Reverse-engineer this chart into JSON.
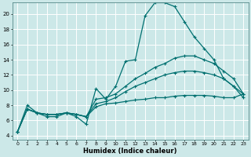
{
  "xlabel": "Humidex (Indice chaleur)",
  "background_color": "#cce8e8",
  "grid_color": "#ffffff",
  "line_color": "#007070",
  "xlim": [
    -0.5,
    23.5
  ],
  "ylim": [
    3.5,
    21.5
  ],
  "yticks": [
    4,
    6,
    8,
    10,
    12,
    14,
    16,
    18,
    20
  ],
  "xticks": [
    0,
    1,
    2,
    3,
    4,
    5,
    6,
    7,
    8,
    9,
    10,
    11,
    12,
    13,
    14,
    15,
    16,
    17,
    18,
    19,
    20,
    21,
    22,
    23
  ],
  "lines": [
    {
      "x": [
        0,
        1,
        2,
        3,
        4,
        5,
        6,
        7,
        8,
        9,
        10,
        11,
        12,
        13,
        14,
        15,
        16,
        17,
        18,
        19,
        20,
        21,
        22,
        23
      ],
      "y": [
        4.5,
        8.0,
        7.0,
        6.5,
        6.5,
        7.0,
        6.5,
        5.5,
        10.2,
        8.8,
        10.5,
        13.8,
        14.0,
        19.8,
        21.5,
        21.5,
        21.0,
        19.0,
        17.0,
        15.5,
        14.0,
        11.5,
        10.5,
        9.5
      ]
    },
    {
      "x": [
        0,
        1,
        2,
        3,
        4,
        5,
        6,
        7,
        8,
        9,
        10,
        11,
        12,
        13,
        14,
        15,
        16,
        17,
        18,
        19,
        20,
        21,
        22,
        23
      ],
      "y": [
        4.5,
        7.5,
        7.0,
        6.8,
        6.8,
        7.0,
        6.8,
        6.5,
        8.8,
        9.0,
        9.5,
        10.5,
        11.5,
        12.2,
        13.0,
        13.5,
        14.2,
        14.5,
        14.5,
        14.0,
        13.5,
        12.5,
        11.5,
        9.5
      ]
    },
    {
      "x": [
        0,
        1,
        2,
        3,
        4,
        5,
        6,
        7,
        8,
        9,
        10,
        11,
        12,
        13,
        14,
        15,
        16,
        17,
        18,
        19,
        20,
        21,
        22,
        23
      ],
      "y": [
        4.5,
        7.5,
        7.0,
        6.8,
        6.8,
        7.0,
        6.8,
        6.5,
        8.2,
        8.5,
        9.0,
        9.8,
        10.5,
        11.0,
        11.5,
        12.0,
        12.3,
        12.5,
        12.5,
        12.3,
        12.0,
        11.5,
        10.5,
        9.0
      ]
    },
    {
      "x": [
        0,
        1,
        2,
        3,
        4,
        5,
        6,
        7,
        8,
        9,
        10,
        11,
        12,
        13,
        14,
        15,
        16,
        17,
        18,
        19,
        20,
        21,
        22,
        23
      ],
      "y": [
        4.5,
        7.5,
        7.0,
        6.8,
        6.8,
        7.0,
        6.8,
        6.5,
        7.8,
        8.2,
        8.3,
        8.5,
        8.7,
        8.8,
        9.0,
        9.0,
        9.2,
        9.3,
        9.3,
        9.3,
        9.2,
        9.0,
        9.0,
        9.5
      ]
    }
  ]
}
